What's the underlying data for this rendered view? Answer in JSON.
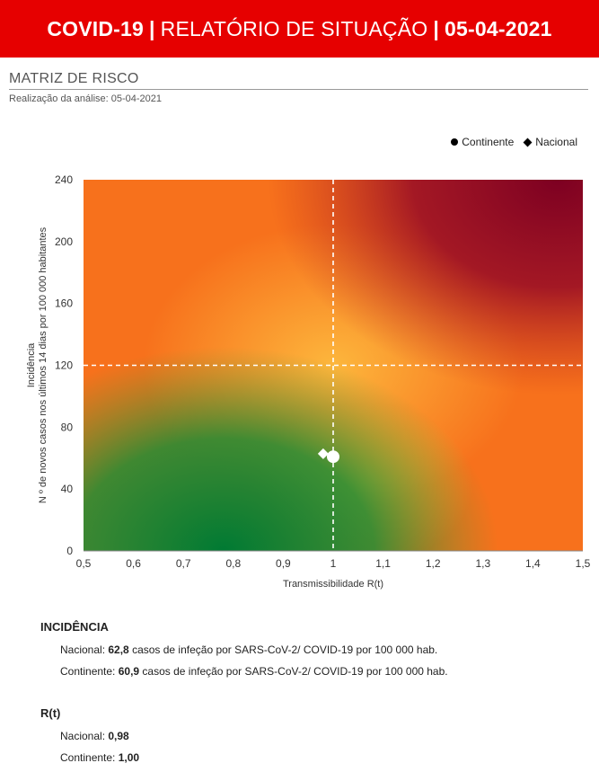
{
  "header": {
    "part1": "COVID-19",
    "part2": "RELATÓRIO DE SITUAÇÃO",
    "part3": "05-04-2021",
    "separator": "|"
  },
  "section": {
    "title": "MATRIZ DE RISCO",
    "analysis_date": "Realização da análise: 05-04-2021"
  },
  "legend": {
    "continente": "Continente",
    "nacional": "Nacional"
  },
  "chart_data": {
    "type": "scatter",
    "xlabel": "Transmissibilidade R(t)",
    "ylabel_line1": "Incidência",
    "ylabel_line2": "N º de novos casos nos últimos 14 dias por 100 000 habitantes",
    "xlim": [
      0.5,
      1.5
    ],
    "ylim": [
      0,
      240
    ],
    "x_ticks": [
      "0,5",
      "0,6",
      "0,7",
      "0,8",
      "0,9",
      "1",
      "1,1",
      "1,2",
      "1,3",
      "1,4",
      "1,5"
    ],
    "y_ticks": [
      "0",
      "40",
      "80",
      "120",
      "160",
      "200",
      "240"
    ],
    "threshold_x": 1,
    "threshold_y": 120,
    "series": [
      {
        "name": "Nacional",
        "marker": "diamond",
        "x": 0.98,
        "y": 62.8,
        "color": "#ffffff"
      },
      {
        "name": "Continente",
        "marker": "circle",
        "x": 1.0,
        "y": 60.9,
        "color": "#ffffff"
      }
    ],
    "background_colors": {
      "low": "#007a33",
      "mid": "#fdb73c",
      "orange": "#f7711c",
      "high": "#7d0022"
    }
  },
  "stats": {
    "incidencia": {
      "title": "INCIDÊNCIA",
      "nacional_label": "Nacional: ",
      "nacional_value": "62,8",
      "nacional_suffix": " casos de infeção por SARS-CoV-2/ COVID-19 por 100 000 hab.",
      "continente_label": "Continente: ",
      "continente_value": "60,9",
      "continente_suffix": " casos de infeção por SARS-CoV-2/ COVID-19 por 100 000 hab."
    },
    "rt": {
      "title": "R(t)",
      "nacional_label": "Nacional: ",
      "nacional_value": "0,98",
      "continente_label": "Continente: ",
      "continente_value": "1,00"
    }
  }
}
